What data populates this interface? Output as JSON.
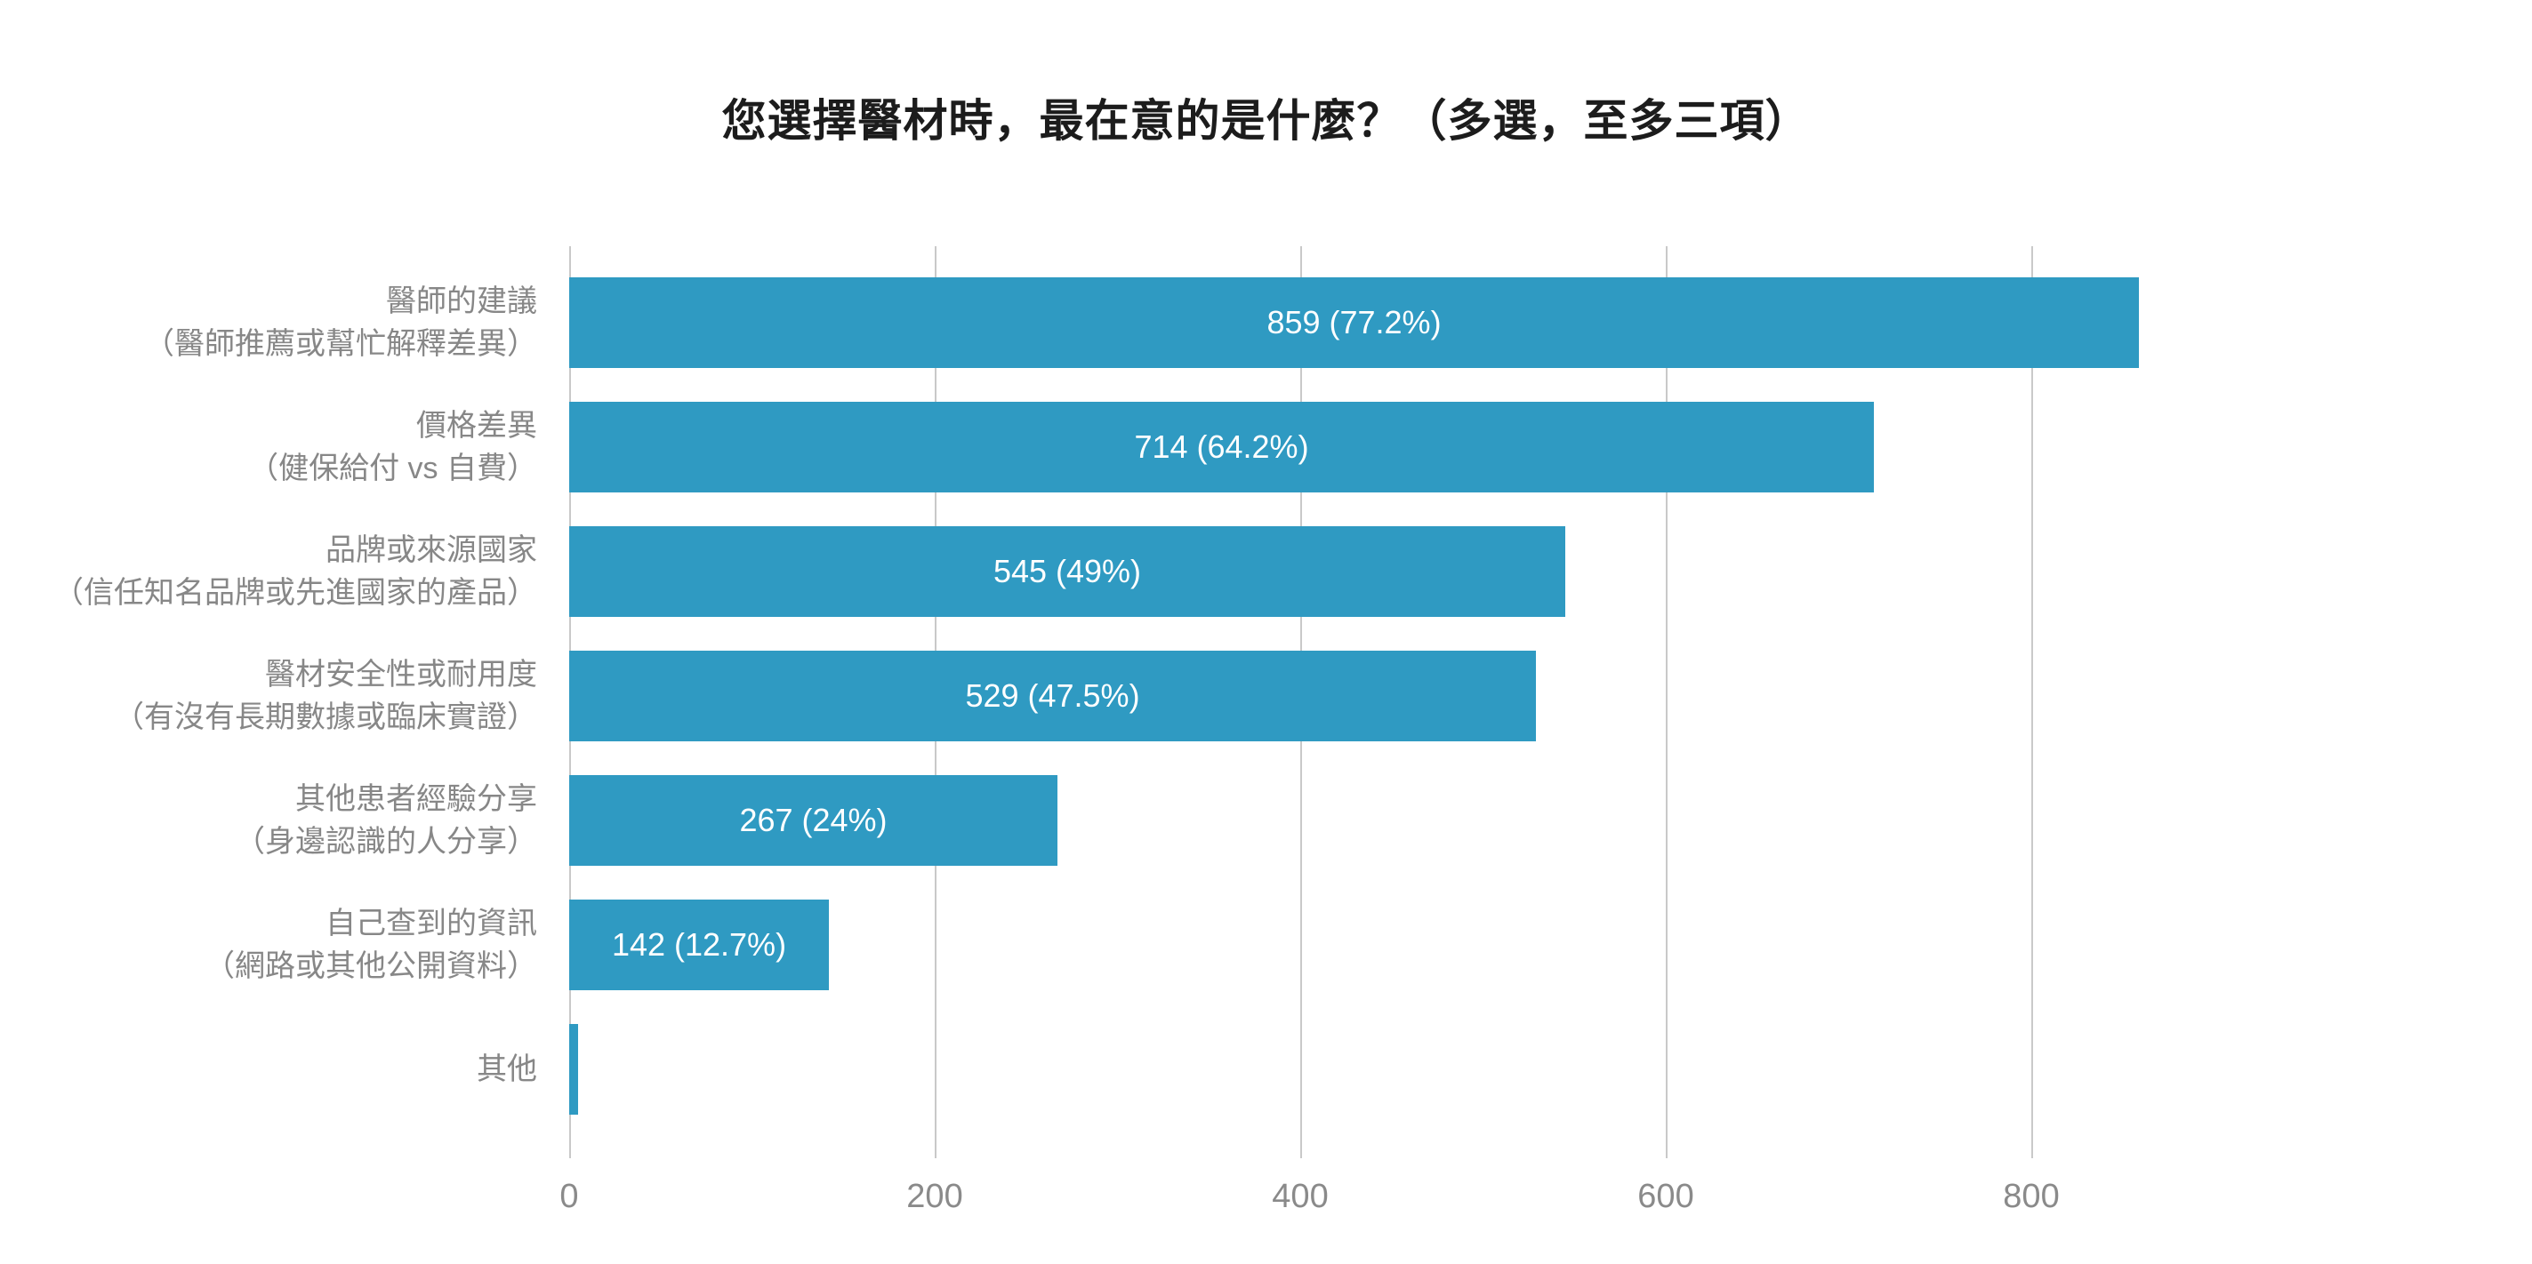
{
  "title": "您選擇醫材時，最在意的是什麼？（多選，至多三項）",
  "chart_data": {
    "type": "bar",
    "orientation": "horizontal",
    "title": "您選擇醫材時，最在意的是什麼？（多選，至多三項）",
    "x_axis": {
      "ticks": [
        0,
        200,
        400,
        600,
        800
      ],
      "range": [
        0,
        1022
      ],
      "gridlines": true
    },
    "series": [
      {
        "label": "醫師的建議",
        "sublabel": "（醫師推薦或幫忙解釋差異）",
        "value": 859,
        "percent": 77.2,
        "data_label": "859 (77.2%)"
      },
      {
        "label": "價格差異",
        "sublabel": "（健保給付 vs 自費）",
        "value": 714,
        "percent": 64.2,
        "data_label": "714 (64.2%)"
      },
      {
        "label": "品牌或來源國家",
        "sublabel": "（信任知名品牌或先進國家的產品）",
        "value": 545,
        "percent": 49,
        "data_label": "545 (49%)"
      },
      {
        "label": "醫材安全性或耐用度",
        "sublabel": "（有沒有長期數據或臨床實證）",
        "value": 529,
        "percent": 47.5,
        "data_label": "529 (47.5%)"
      },
      {
        "label": "其他患者經驗分享",
        "sublabel": "（身邊認識的人分享）",
        "value": 267,
        "percent": 24,
        "data_label": "267 (24%)"
      },
      {
        "label": "自己查到的資訊",
        "sublabel": "（網路或其他公開資料）",
        "value": 142,
        "percent": 12.7,
        "data_label": "142 (12.7%)"
      },
      {
        "label": "其他",
        "sublabel": "",
        "value": 5,
        "data_label": ""
      }
    ],
    "colors": {
      "bar": "#2f9ac2",
      "grid": "#c9c9c9",
      "category_label": "#878787",
      "tick_label": "#8a8a8a",
      "title": "#1c1c1c",
      "value_label": "#ffffff",
      "background": "#ffffff"
    },
    "legend": null
  }
}
